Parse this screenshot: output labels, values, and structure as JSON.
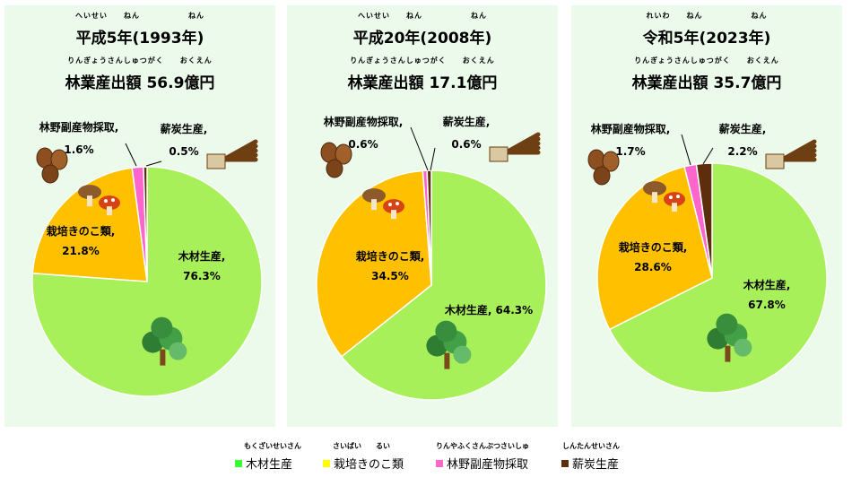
{
  "colors": {
    "wood": "#a8f05a",
    "mushroom": "#ffc000",
    "sansai": "#ff66cc",
    "charcoal": "#5c2e0c"
  },
  "chart_data": [
    {
      "type": "pie",
      "title_ruby": "へいせい　　ねん　　　　　　ねん",
      "title": "平成5年(1993年)",
      "total_ruby": "りんぎょうさんしゅつがく　　おくえん",
      "total": "林業産出額 56.9億円",
      "slices": [
        {
          "name": "木材生産",
          "label": "木材生産,",
          "value": 76.3,
          "value_label": "76.3%"
        },
        {
          "name": "栽培きのこ類",
          "label": "栽培きのこ類,",
          "value": 21.8,
          "value_label": "21.8%"
        },
        {
          "name": "林野副産物採取",
          "label": "林野副産物採取,",
          "value": 1.6,
          "value_label": "1.6%"
        },
        {
          "name": "薪炭生産",
          "label": "薪炭生産,",
          "value": 0.5,
          "value_label": "0.5%"
        }
      ]
    },
    {
      "type": "pie",
      "title_ruby": "へいせい　　ねん　　　　　　ねん",
      "title": "平成20年(2008年)",
      "total_ruby": "りんぎょうさんしゅつがく　　おくえん",
      "total": "林業産出額 17.1億円",
      "slices": [
        {
          "name": "木材生産",
          "label": "木材生産, 64.3%",
          "value": 64.3,
          "value_label": ""
        },
        {
          "name": "栽培きのこ類",
          "label": "栽培きのこ類,",
          "value": 34.5,
          "value_label": "34.5%"
        },
        {
          "name": "林野副産物採取",
          "label": "林野副産物採取,",
          "value": 0.6,
          "value_label": "0.6%"
        },
        {
          "name": "薪炭生産",
          "label": "薪炭生産,",
          "value": 0.6,
          "value_label": "0.6%"
        }
      ]
    },
    {
      "type": "pie",
      "title_ruby": "れいわ　　ねん　　　　　　ねん",
      "title": "令和5年(2023年)",
      "total_ruby": "りんぎょうさんしゅつがく　　おくえん",
      "total": "林業産出額 35.7億円",
      "slices": [
        {
          "name": "木材生産",
          "label": "木材生産,",
          "value": 67.8,
          "value_label": "67.8%"
        },
        {
          "name": "栽培きのこ類",
          "label": "栽培きのこ類,",
          "value": 28.6,
          "value_label": "28.6%"
        },
        {
          "name": "林野副産物採取",
          "label": "林野副産物採取,",
          "value": 1.7,
          "value_label": "1.7%"
        },
        {
          "name": "薪炭生産",
          "label": "薪炭生産,",
          "value": 2.2,
          "value_label": "2.2%"
        }
      ]
    }
  ],
  "legend": [
    {
      "ruby": "もくざいせいさん",
      "label": "木材生産",
      "color": "#33ff33"
    },
    {
      "ruby": "さいばい　　るい",
      "label": "栽培きのこ類",
      "color": "#ffff00"
    },
    {
      "ruby": "りんやふくさんぶつさいしゅ",
      "label": "林野副産物採取",
      "color": "#ff66cc"
    },
    {
      "ruby": "しんたんせいさん",
      "label": "薪炭生産",
      "color": "#5c2e0c"
    }
  ]
}
